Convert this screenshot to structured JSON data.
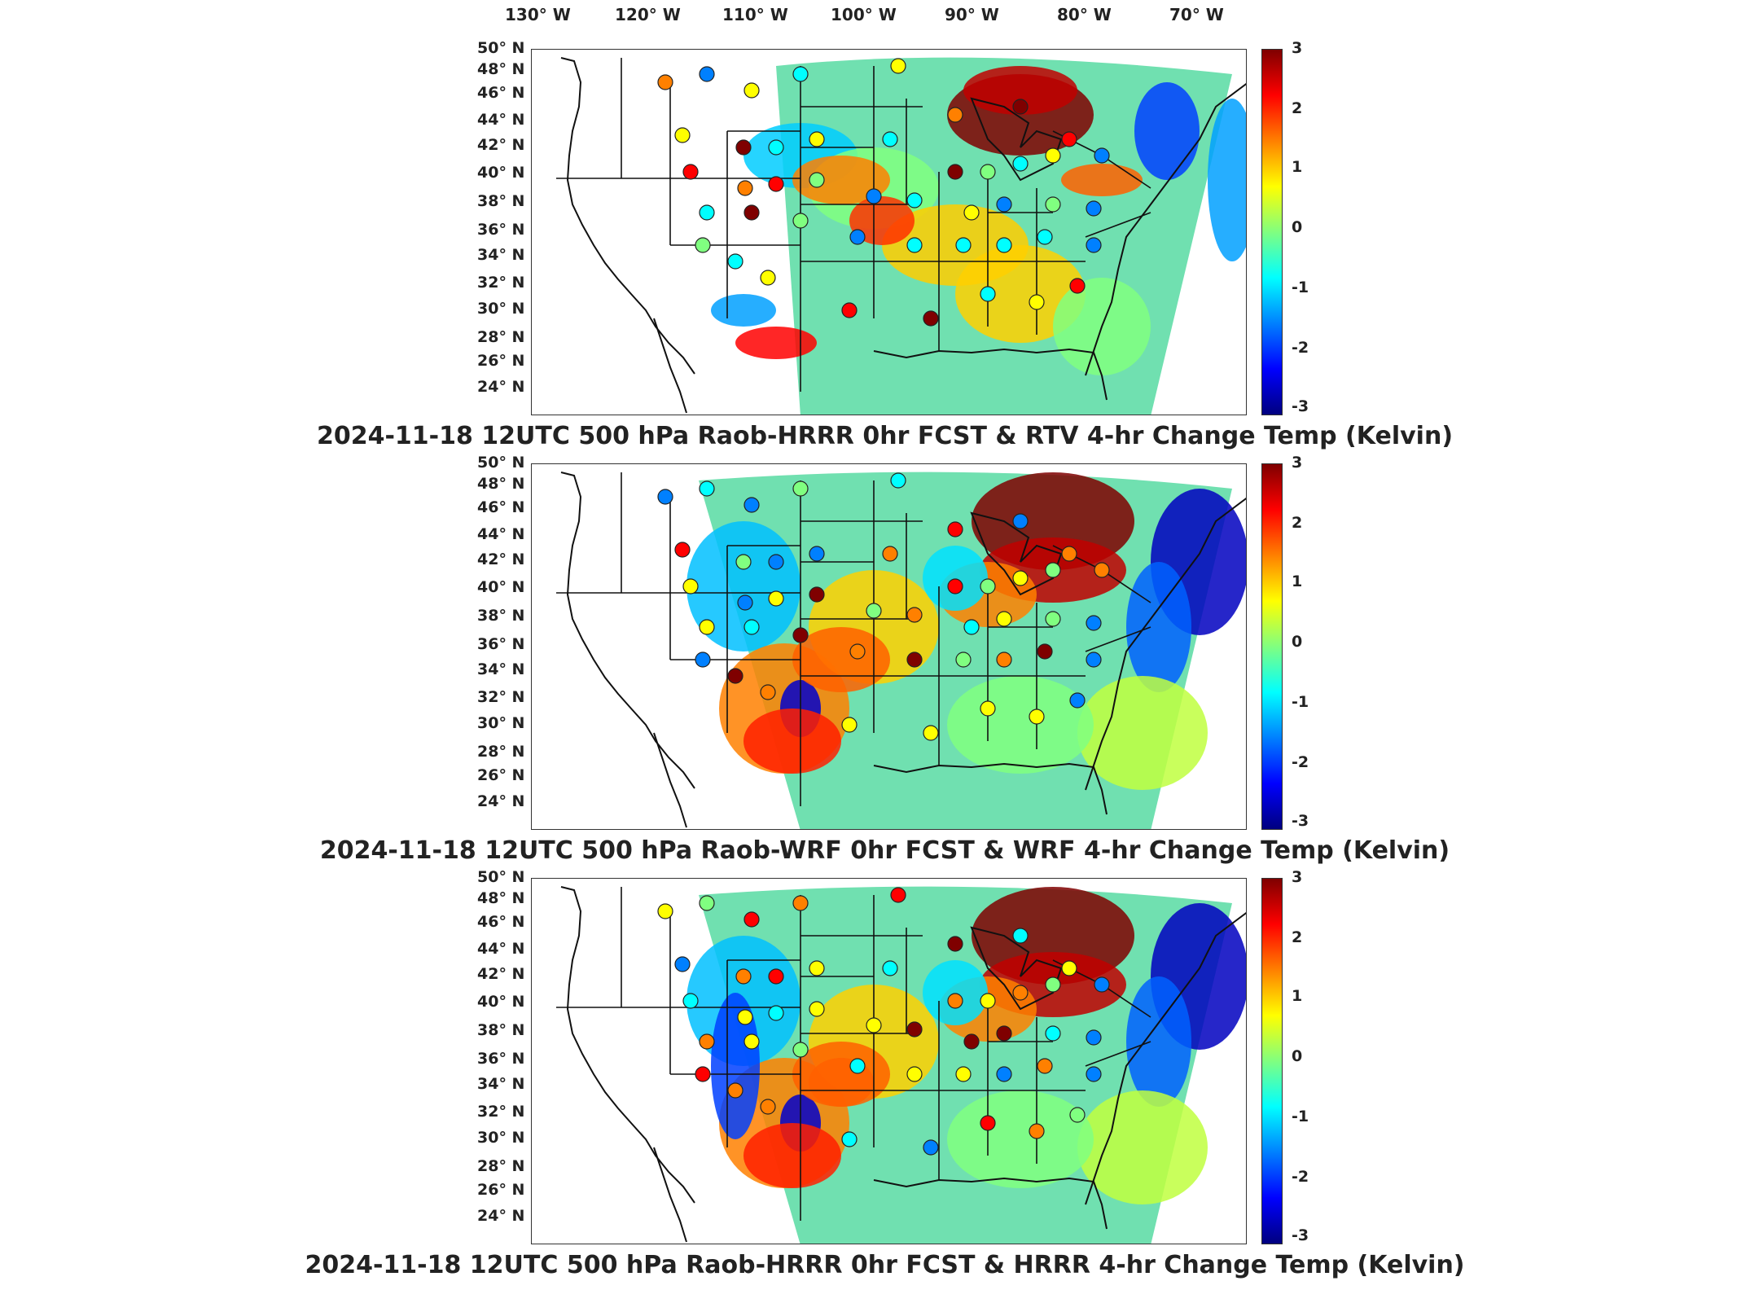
{
  "lon_labels": [
    "130° W",
    "120° W",
    "110° W",
    "100° W",
    "90° W",
    "80° W",
    "70° W"
  ],
  "lat_labels": [
    "50° N",
    "48° N",
    "46° N",
    "44° N",
    "42° N",
    "40° N",
    "38° N",
    "36° N",
    "34° N",
    "32° N",
    "30° N",
    "28° N",
    "26° N",
    "24° N"
  ],
  "colorbar_ticks": [
    "3",
    "2",
    "1",
    "0",
    "-1",
    "-2",
    "-3"
  ],
  "colormap": "jet",
  "panels": [
    {
      "caption": "2024-11-18 12UTC 500 hPa Raob-HRRR 0hr FCST & RTV 4-hr Change Temp (Kelvin)"
    },
    {
      "caption": "2024-11-18 12UTC 500 hPa Raob-WRF 0hr FCST & WRF 4-hr Change Temp (Kelvin)"
    },
    {
      "caption": "2024-11-18 12UTC 500 hPa Raob-HRRR 0hr FCST & HRRR 4-hr Change Temp (Kelvin)"
    }
  ],
  "colors": {
    "hot": "#7f0000",
    "red": "#ff0000",
    "orange": "#ff8000",
    "yellow": "#ffff00",
    "green": "#80ff80",
    "cyan": "#00ffff",
    "blue": "#0080ff",
    "navy": "#00007f"
  }
}
